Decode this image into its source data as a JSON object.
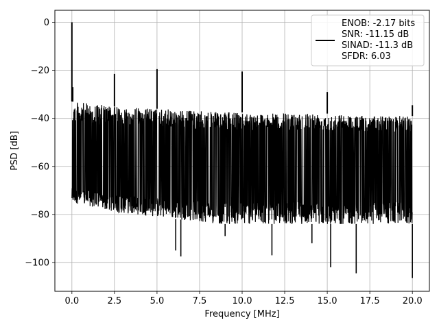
{
  "chart_data": {
    "type": "line",
    "xlabel": "Frequency [MHz]",
    "ylabel": "PSD [dB]",
    "xlim": [
      -1.0,
      21.0
    ],
    "ylim": [
      -112,
      5
    ],
    "xticks": [
      0.0,
      2.5,
      5.0,
      7.5,
      10.0,
      12.5,
      15.0,
      17.5,
      20.0
    ],
    "xtick_labels": [
      "0.0",
      "2.5",
      "5.0",
      "7.5",
      "10.0",
      "12.5",
      "15.0",
      "17.5",
      "20.0"
    ],
    "yticks": [
      0,
      -20,
      -40,
      -60,
      -80,
      -100
    ],
    "ytick_labels": [
      "0",
      "−20",
      "−40",
      "−60",
      "−80",
      "−100"
    ],
    "grid": true,
    "legend_position": "upper-right",
    "legend": {
      "lines": [
        "ENOB: -2.17 bits",
        "SNR: -11.15 dB",
        "SINAD: -11.3 dB",
        "SFDR: 6.03"
      ]
    },
    "series": [
      {
        "color": "#000000",
        "noise_envelope": {
          "x": [
            0.0,
            1.25,
            2.5,
            3.75,
            5.0,
            6.25,
            7.5,
            8.75,
            10.0,
            11.25,
            12.5,
            13.75,
            15.0,
            16.25,
            17.5,
            18.75,
            20.0
          ],
          "upper": [
            -33,
            -34,
            -35,
            -35.5,
            -36,
            -36.5,
            -37,
            -37.5,
            -37.5,
            -38,
            -38,
            -37.5,
            -38,
            -38.5,
            -39,
            -39,
            -39
          ],
          "lower": [
            -75,
            -77,
            -79,
            -80,
            -81,
            -82,
            -83,
            -84,
            -84,
            -84,
            -84,
            -84,
            -84,
            -84,
            -84,
            -84,
            -84
          ],
          "mean": -58
        },
        "spurs": [
          {
            "x": 0.0,
            "y": 0.0
          },
          {
            "x": 0.05,
            "y": -27.0
          },
          {
            "x": 2.5,
            "y": -21.5
          },
          {
            "x": 5.0,
            "y": -19.5
          },
          {
            "x": 10.0,
            "y": -20.5
          },
          {
            "x": 15.0,
            "y": -29.0
          },
          {
            "x": 20.0,
            "y": -34.5
          }
        ],
        "dips": [
          {
            "x": 6.4,
            "y": -97.5
          },
          {
            "x": 6.1,
            "y": -95.0
          },
          {
            "x": 11.75,
            "y": -97.0
          },
          {
            "x": 15.2,
            "y": -102.0
          },
          {
            "x": 16.7,
            "y": -104.5
          },
          {
            "x": 20.0,
            "y": -106.5
          },
          {
            "x": 14.1,
            "y": -92.0
          },
          {
            "x": 9.0,
            "y": -89.0
          }
        ]
      }
    ]
  }
}
